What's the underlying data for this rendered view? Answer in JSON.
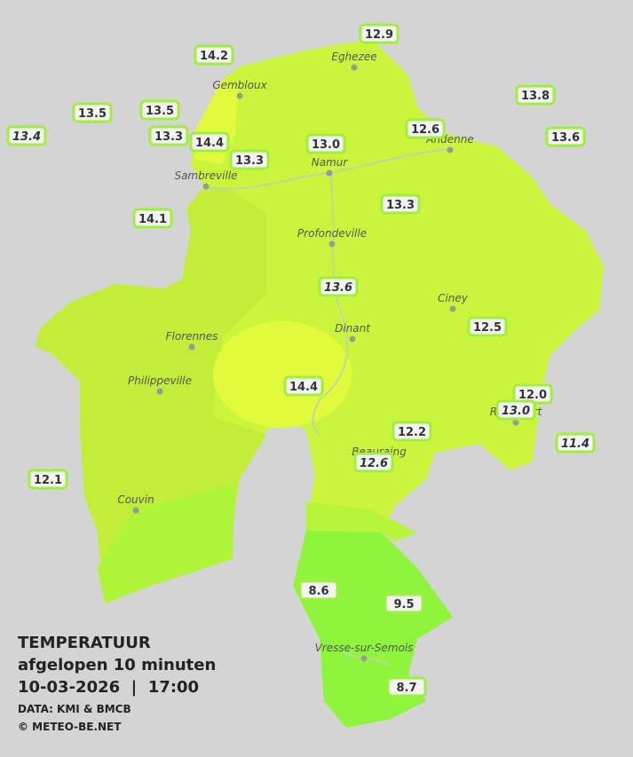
{
  "title": "TEMPERATUUR",
  "subtitle": "afgelopen 10 minuten",
  "datetime": "10-03-2026  |  17:00",
  "source": "DATA: KMI & BMCB",
  "copyright": "© METEO-BE.NET",
  "cities": [
    "Eghezee",
    "Gembloux",
    "Andenne",
    "Namur",
    "Sambreville",
    "Profondeville",
    "Ciney",
    "Dinant",
    "Florennes",
    "Philippeville",
    "Rochefort",
    "Beauraing",
    "Couvin",
    "Vresse-sur-Semois"
  ],
  "stations": [
    {
      "label": "12.9"
    },
    {
      "label": "14.2"
    },
    {
      "label": "13.8"
    },
    {
      "label": "13.5"
    },
    {
      "label": "13.5"
    },
    {
      "label": "13.4",
      "italic": true
    },
    {
      "label": "13.3"
    },
    {
      "label": "14.4"
    },
    {
      "label": "12.6"
    },
    {
      "label": "13.6"
    },
    {
      "label": "13.0"
    },
    {
      "label": "13.3"
    },
    {
      "label": "14.1"
    },
    {
      "label": "13.3"
    },
    {
      "label": "13.6",
      "italic": true
    },
    {
      "label": "12.5"
    },
    {
      "label": "14.4"
    },
    {
      "label": "12.0"
    },
    {
      "label": "13.0",
      "italic": true
    },
    {
      "label": "11.4",
      "italic": true
    },
    {
      "label": "12.2"
    },
    {
      "label": "12.6",
      "italic": true
    },
    {
      "label": "12.1"
    },
    {
      "label": "8.6"
    },
    {
      "label": "9.5"
    },
    {
      "label": "8.7"
    }
  ]
}
